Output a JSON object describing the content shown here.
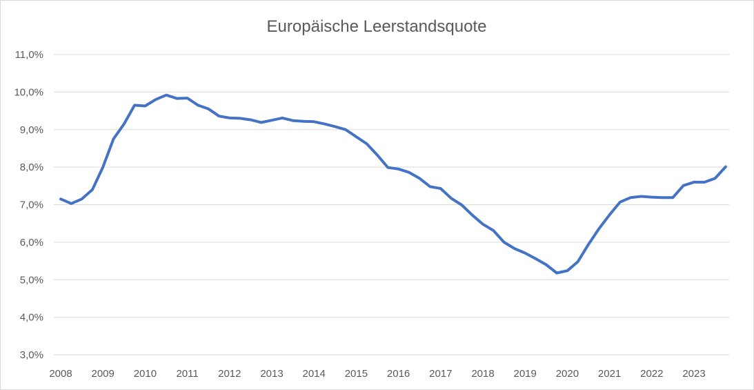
{
  "chart_data": {
    "type": "line",
    "title": "Europäische Leerstandsquote",
    "xlabel": "",
    "ylabel": "",
    "ylim": [
      0.03,
      0.11
    ],
    "y_ticks": [
      {
        "value": 0.03,
        "label": "3,0%"
      },
      {
        "value": 0.04,
        "label": "4,0%"
      },
      {
        "value": 0.05,
        "label": "5,0%"
      },
      {
        "value": 0.06,
        "label": "6,0%"
      },
      {
        "value": 0.07,
        "label": "7,0%"
      },
      {
        "value": 0.08,
        "label": "8,0%"
      },
      {
        "value": 0.09,
        "label": "9,0%"
      },
      {
        "value": 0.1,
        "label": "10,0%"
      },
      {
        "value": 0.11,
        "label": "11,0%"
      }
    ],
    "x_ticks": [
      "2008",
      "2009",
      "2010",
      "2011",
      "2012",
      "2013",
      "2014",
      "2015",
      "2016",
      "2017",
      "2018",
      "2019",
      "2020",
      "2021",
      "2022",
      "2023"
    ],
    "grid": true,
    "legend": "none",
    "color": "#4472c4",
    "series": [
      {
        "values": [
          0.0715,
          0.0703,
          0.0715,
          0.074,
          0.08,
          0.0875,
          0.0915,
          0.0965,
          0.0963,
          0.098,
          0.0992,
          0.0983,
          0.0984,
          0.0965,
          0.0955,
          0.0936,
          0.0931,
          0.093,
          0.0926,
          0.0919,
          0.0925,
          0.0931,
          0.0924,
          0.0922,
          0.0921,
          0.0915,
          0.0908,
          0.09,
          0.0881,
          0.0862,
          0.0832,
          0.0799,
          0.0795,
          0.0786,
          0.077,
          0.0748,
          0.0743,
          0.0717,
          0.0699,
          0.0672,
          0.0648,
          0.0631,
          0.06,
          0.0583,
          0.0571,
          0.0556,
          0.054,
          0.0518,
          0.0524,
          0.0548,
          0.0594,
          0.0636,
          0.0673,
          0.0707,
          0.0719,
          0.0722,
          0.072,
          0.0719,
          0.0719,
          0.0751,
          0.076,
          0.076,
          0.077,
          0.0801
        ]
      }
    ]
  }
}
